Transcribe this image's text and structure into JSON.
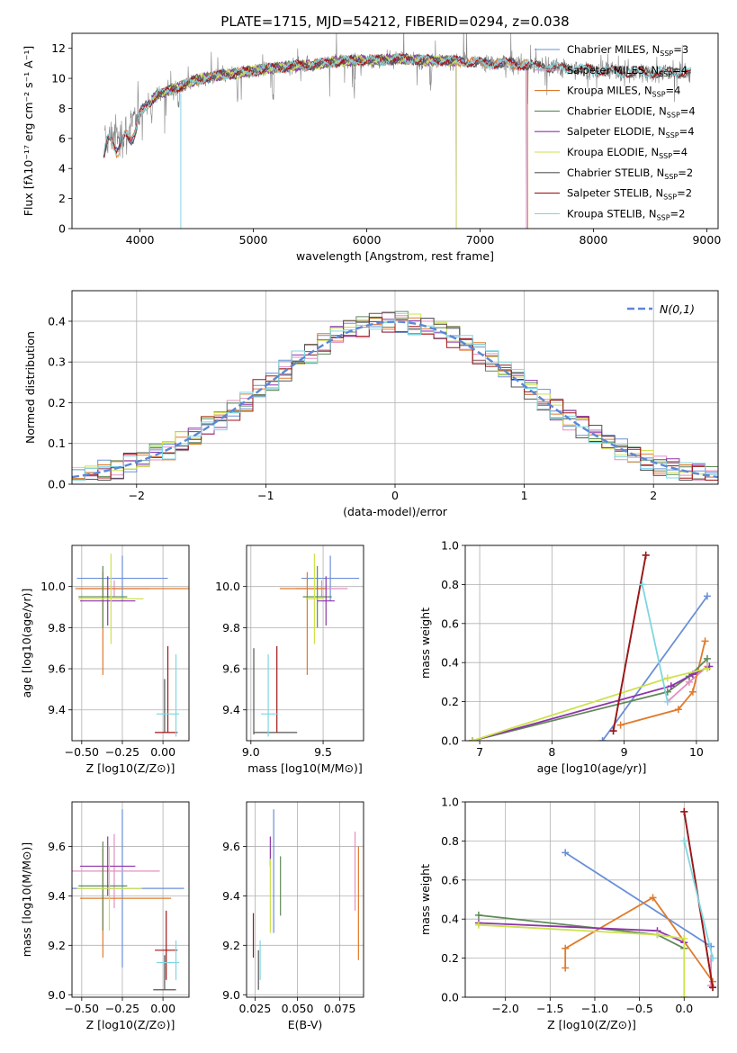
{
  "figure": {
    "title": "PLATE=1715, MJD=54212, FIBERID=0294, z=0.038"
  },
  "colors": {
    "Chabrier MILES": "#6a8fd8",
    "Salpeter MILES": "#e48fbf",
    "Kroupa MILES": "#e07a2a",
    "Chabrier ELODIE": "#5f8a58",
    "Salpeter ELODIE": "#8e35a8",
    "Kroupa ELODIE": "#cde24d",
    "Chabrier STELIB": "#555555",
    "Salpeter STELIB": "#a01616",
    "Kroupa STELIB": "#7fd6e0"
  },
  "chart_data": [
    {
      "id": "spectrum",
      "type": "line",
      "xlabel": "wavelength [Angstrom, rest frame]",
      "ylabel": "Flux [fλ10⁻¹⁷ erg cm⁻² s⁻¹ A⁻¹]",
      "xlim": [
        3400,
        9100
      ],
      "ylim": [
        0,
        13
      ],
      "xticks": [
        4000,
        5000,
        6000,
        7000,
        8000,
        9000
      ],
      "yticks": [
        0,
        2,
        4,
        6,
        8,
        10,
        12
      ],
      "legend": [
        {
          "label": "Chabrier MILES, N",
          "sub": "SSP",
          "suffix": "=3",
          "key": "Chabrier MILES"
        },
        {
          "label": "Salpeter MILES, N",
          "sub": "SSP",
          "suffix": "=4",
          "key": "Salpeter MILES"
        },
        {
          "label": "Kroupa MILES, N",
          "sub": "SSP",
          "suffix": "=4",
          "key": "Kroupa MILES"
        },
        {
          "label": "Chabrier ELODIE, N",
          "sub": "SSP",
          "suffix": "=4",
          "key": "Chabrier ELODIE"
        },
        {
          "label": "Salpeter ELODIE, N",
          "sub": "SSP",
          "suffix": "=4",
          "key": "Salpeter ELODIE"
        },
        {
          "label": "Kroupa ELODIE, N",
          "sub": "SSP",
          "suffix": "=4",
          "key": "Kroupa ELODIE"
        },
        {
          "label": "Chabrier STELIB, N",
          "sub": "SSP",
          "suffix": "=2",
          "key": "Chabrier STELIB"
        },
        {
          "label": "Salpeter STELIB, N",
          "sub": "SSP",
          "suffix": "=2",
          "key": "Salpeter STELIB"
        },
        {
          "label": "Kroupa STELIB, N",
          "sub": "SSP",
          "suffix": "=2",
          "key": "Kroupa STELIB"
        }
      ],
      "continuum": {
        "x": [
          3680,
          3750,
          3850,
          3950,
          4050,
          4150,
          4300,
          4500,
          4700,
          4900,
          5100,
          5300,
          5500,
          5700,
          5900,
          6100,
          6300,
          6500,
          6700,
          6900,
          7100,
          7300,
          7500,
          7700,
          7900,
          8100,
          8300,
          8500,
          8700,
          8850
        ],
        "y": [
          5.6,
          6.2,
          6.3,
          7.2,
          8.2,
          8.9,
          9.3,
          9.9,
          10.2,
          10.4,
          10.6,
          10.8,
          10.9,
          11.1,
          11.2,
          11.2,
          11.3,
          11.2,
          11.2,
          11.1,
          11.0,
          11.0,
          10.8,
          10.7,
          10.6,
          10.5,
          10.4,
          10.4,
          10.4,
          10.4
        ]
      },
      "data_range": [
        3690,
        8860
      ],
      "model_ranges": {
        "Chabrier MILES": [
          3680,
          7410
        ],
        "Salpeter MILES": [
          3680,
          7410
        ],
        "Kroupa MILES": [
          3680,
          7420
        ],
        "Chabrier ELODIE": [
          4100,
          6790
        ],
        "Salpeter ELODIE": [
          4100,
          6790
        ],
        "Kroupa ELODIE": [
          4100,
          6790
        ],
        "Chabrier STELIB": [
          3680,
          8860
        ],
        "Salpeter STELIB": [
          3680,
          8860
        ],
        "Kroupa STELIB": [
          3680,
          8860
        ]
      }
    },
    {
      "id": "residuals",
      "type": "histogram",
      "xlabel": "(data-model)/error",
      "ylabel": "Normed distribution",
      "xlim": [
        -2.5,
        2.5
      ],
      "ylim": [
        0,
        0.475
      ],
      "xticks": [
        -2,
        -1,
        0,
        1,
        2
      ],
      "yticks": [
        0.0,
        0.1,
        0.2,
        0.3,
        0.4
      ],
      "grid": true,
      "legend_label": "N(0,1)",
      "reference": {
        "mean": 0,
        "sigma": 1
      },
      "bin_width": 0.1
    },
    {
      "id": "age-vs-Z",
      "type": "errorbar",
      "xlabel": "Z [log10(Z/Z⊙)]",
      "ylabel": "age  [log10(age/yr)]",
      "xlim": [
        -0.56,
        0.16
      ],
      "ylim": [
        9.25,
        10.2
      ],
      "xticks": [
        -0.5,
        -0.25,
        0.0
      ],
      "yticks": [
        9.4,
        9.6,
        9.8,
        10.0
      ],
      "grid": true,
      "points": [
        {
          "key": "Chabrier MILES",
          "x": -0.25,
          "xerr": 0.28,
          "y": 10.04,
          "yerr": 0.11
        },
        {
          "key": "Salpeter MILES",
          "x": -0.3,
          "xerr": 0.22,
          "y": 9.99,
          "yerr": 0.04
        },
        {
          "key": "Kroupa MILES",
          "x": -0.18,
          "xerr": 0.36,
          "y": 9.99,
          "yerr": 0.0
        },
        {
          "key": "Kroupa MILES",
          "x": -0.37,
          "xerr": 0.0,
          "y": 9.82,
          "yerr": 0.25
        },
        {
          "key": "Chabrier ELODIE",
          "x": -0.37,
          "xerr": 0.15,
          "y": 9.95,
          "yerr": 0.15
        },
        {
          "key": "Salpeter ELODIE",
          "x": -0.34,
          "xerr": 0.17,
          "y": 9.93,
          "yerr": 0.12
        },
        {
          "key": "Kroupa ELODIE",
          "x": -0.32,
          "xerr": 0.2,
          "y": 9.94,
          "yerr": 0.22
        },
        {
          "key": "Chabrier STELIB",
          "x": 0.01,
          "xerr": 0.0,
          "y": 9.42,
          "yerr": 0.13
        },
        {
          "key": "Salpeter STELIB",
          "x": 0.02,
          "xerr": 0.07,
          "y": 9.29,
          "yerr": 0.0
        },
        {
          "key": "Salpeter STELIB",
          "x": 0.03,
          "xerr": 0.0,
          "y": 9.5,
          "yerr": 0.21
        },
        {
          "key": "Kroupa STELIB",
          "x": 0.03,
          "xerr": 0.07,
          "y": 9.38,
          "yerr": 0.0
        },
        {
          "key": "Kroupa STELIB",
          "x": 0.08,
          "xerr": 0.0,
          "y": 9.47,
          "yerr": 0.2
        }
      ]
    },
    {
      "id": "age-vs-mass",
      "type": "errorbar",
      "xlabel": "mass [log10(M/M⊙)]",
      "ylabel": "",
      "xlim": [
        8.97,
        9.78
      ],
      "ylim": [
        9.25,
        10.2
      ],
      "xticks": [
        9.0,
        9.5
      ],
      "yticks": [
        9.4,
        9.6,
        9.8,
        10.0
      ],
      "grid": true,
      "points": [
        {
          "key": "Chabrier MILES",
          "x": 9.55,
          "xerr": 0.2,
          "y": 10.04,
          "yerr": 0.11
        },
        {
          "key": "Salpeter MILES",
          "x": 9.49,
          "xerr": 0.18,
          "y": 9.99,
          "yerr": 0.04
        },
        {
          "key": "Kroupa MILES",
          "x": 9.36,
          "xerr": 0.16,
          "y": 9.99,
          "yerr": 0.0
        },
        {
          "key": "Kroupa MILES",
          "x": 9.39,
          "xerr": 0.0,
          "y": 9.82,
          "yerr": 0.25
        },
        {
          "key": "Chabrier ELODIE",
          "x": 9.46,
          "xerr": 0.1,
          "y": 9.95,
          "yerr": 0.15
        },
        {
          "key": "Salpeter ELODIE",
          "x": 9.52,
          "xerr": 0.06,
          "y": 9.93,
          "yerr": 0.12
        },
        {
          "key": "Kroupa ELODIE",
          "x": 9.44,
          "xerr": 0.06,
          "y": 9.94,
          "yerr": 0.22
        },
        {
          "key": "Chabrier STELIB",
          "x": 9.17,
          "xerr": 0.15,
          "y": 9.29,
          "yerr": 0.0
        },
        {
          "key": "Chabrier STELIB",
          "x": 9.02,
          "xerr": 0.0,
          "y": 9.49,
          "yerr": 0.21
        },
        {
          "key": "Salpeter STELIB",
          "x": 9.18,
          "xerr": 0.0,
          "y": 9.5,
          "yerr": 0.21
        },
        {
          "key": "Kroupa STELIB",
          "x": 9.13,
          "xerr": 0.06,
          "y": 9.38,
          "yerr": 0.0
        },
        {
          "key": "Kroupa STELIB",
          "x": 9.12,
          "xerr": 0.0,
          "y": 9.47,
          "yerr": 0.2
        }
      ]
    },
    {
      "id": "massweight-vs-age",
      "type": "line",
      "xlabel": "age  [log10(age/yr)]",
      "ylabel": "mass weight",
      "xlim": [
        6.8,
        10.3
      ],
      "ylim": [
        0,
        1.0
      ],
      "xticks": [
        7,
        8,
        9,
        10
      ],
      "yticks": [
        0.0,
        0.2,
        0.4,
        0.6,
        0.8,
        1.0
      ],
      "grid": true,
      "series": [
        {
          "key": "Chabrier MILES",
          "x": [
            8.7,
            10.15
          ],
          "y": [
            0.0,
            0.74
          ]
        },
        {
          "key": "Salpeter MILES",
          "x": [
            9.6,
            9.9,
            10.15
          ],
          "y": [
            0.2,
            0.3,
            0.38
          ]
        },
        {
          "key": "Kroupa MILES",
          "x": [
            8.95,
            9.75,
            9.95,
            10.12
          ],
          "y": [
            0.08,
            0.16,
            0.25,
            0.51
          ]
        },
        {
          "key": "Chabrier ELODIE",
          "x": [
            6.9,
            9.6,
            9.9,
            10.15
          ],
          "y": [
            0.0,
            0.25,
            0.33,
            0.42
          ]
        },
        {
          "key": "Salpeter ELODIE",
          "x": [
            6.9,
            9.65,
            9.95,
            10.18
          ],
          "y": [
            0.0,
            0.28,
            0.34,
            0.38
          ]
        },
        {
          "key": "Kroupa ELODIE",
          "x": [
            6.9,
            9.6,
            10.15
          ],
          "y": [
            0.0,
            0.32,
            0.37
          ]
        },
        {
          "key": "Chabrier STELIB",
          "x": [
            8.85,
            9.3
          ],
          "y": [
            0.05,
            0.95
          ]
        },
        {
          "key": "Salpeter STELIB",
          "x": [
            8.85,
            9.3
          ],
          "y": [
            0.05,
            0.95
          ]
        },
        {
          "key": "Kroupa STELIB",
          "x": [
            9.25,
            9.6
          ],
          "y": [
            0.8,
            0.2
          ]
        }
      ]
    },
    {
      "id": "mass-vs-Z",
      "type": "errorbar",
      "xlabel": "Z [log10(Z/Z⊙)]",
      "ylabel": "mass [log10(M/M⊙)]",
      "xlim": [
        -0.56,
        0.16
      ],
      "ylim": [
        8.99,
        9.78
      ],
      "xticks": [
        -0.5,
        -0.25,
        0.0
      ],
      "yticks": [
        9.0,
        9.2,
        9.4,
        9.6
      ],
      "grid": true,
      "points": [
        {
          "key": "Chabrier MILES",
          "x": -0.25,
          "xerr": 0.38,
          "y": 9.43,
          "yerr": 0.32
        },
        {
          "key": "Salpeter MILES",
          "x": -0.3,
          "xerr": 0.28,
          "y": 9.5,
          "yerr": 0.15
        },
        {
          "key": "Kroupa MILES",
          "x": -0.23,
          "xerr": 0.28,
          "y": 9.39,
          "yerr": 0.0
        },
        {
          "key": "Kroupa MILES",
          "x": -0.37,
          "xerr": 0.0,
          "y": 9.37,
          "yerr": 0.22
        },
        {
          "key": "Chabrier ELODIE",
          "x": -0.37,
          "xerr": 0.15,
          "y": 9.44,
          "yerr": 0.18
        },
        {
          "key": "Salpeter ELODIE",
          "x": -0.34,
          "xerr": 0.17,
          "y": 9.52,
          "yerr": 0.12
        },
        {
          "key": "Kroupa ELODIE",
          "x": -0.33,
          "xerr": 0.2,
          "y": 9.43,
          "yerr": 0.17
        },
        {
          "key": "Chabrier STELIB",
          "x": 0.01,
          "xerr": 0.07,
          "y": 9.02,
          "yerr": 0.0
        },
        {
          "key": "Chabrier STELIB",
          "x": 0.01,
          "xerr": 0.0,
          "y": 9.09,
          "yerr": 0.07
        },
        {
          "key": "Salpeter STELIB",
          "x": 0.02,
          "xerr": 0.07,
          "y": 9.18,
          "yerr": 0.0
        },
        {
          "key": "Salpeter STELIB",
          "x": 0.02,
          "xerr": 0.0,
          "y": 9.2,
          "yerr": 0.14
        },
        {
          "key": "Kroupa STELIB",
          "x": 0.03,
          "xerr": 0.07,
          "y": 9.13,
          "yerr": 0.0
        },
        {
          "key": "Kroupa STELIB",
          "x": 0.08,
          "xerr": 0.0,
          "y": 9.14,
          "yerr": 0.08
        }
      ]
    },
    {
      "id": "mass-vs-EBV",
      "type": "errorbar",
      "xlabel": "E(B-V)",
      "ylabel": "",
      "xlim": [
        0.02,
        0.089
      ],
      "ylim": [
        8.99,
        9.78
      ],
      "xticks": [
        0.025,
        0.05,
        0.075
      ],
      "yticks": [
        9.0,
        9.2,
        9.4,
        9.6
      ],
      "grid": true,
      "points": [
        {
          "key": "Chabrier MILES",
          "x": 0.036,
          "xerr": 0.0,
          "y": 9.5,
          "yerr": 0.25
        },
        {
          "key": "Salpeter MILES",
          "x": 0.084,
          "xerr": 0.0,
          "y": 9.5,
          "yerr": 0.16
        },
        {
          "key": "Kroupa MILES",
          "x": 0.086,
          "xerr": 0.0,
          "y": 9.37,
          "yerr": 0.23
        },
        {
          "key": "Chabrier ELODIE",
          "x": 0.04,
          "xerr": 0.0,
          "y": 9.44,
          "yerr": 0.12
        },
        {
          "key": "Salpeter ELODIE",
          "x": 0.034,
          "xerr": 0.0,
          "y": 9.58,
          "yerr": 0.06
        },
        {
          "key": "Kroupa ELODIE",
          "x": 0.034,
          "xerr": 0.0,
          "y": 9.4,
          "yerr": 0.15
        },
        {
          "key": "Chabrier STELIB",
          "x": 0.027,
          "xerr": 0.0,
          "y": 9.1,
          "yerr": 0.08
        },
        {
          "key": "Salpeter STELIB",
          "x": 0.024,
          "xerr": 0.0,
          "y": 9.24,
          "yerr": 0.09
        },
        {
          "key": "Kroupa STELIB",
          "x": 0.028,
          "xerr": 0.0,
          "y": 9.14,
          "yerr": 0.08
        }
      ]
    },
    {
      "id": "massweight-vs-Z",
      "type": "line",
      "xlabel": "Z [log10(Z/Z⊙)]",
      "ylabel": "mass weight",
      "xlim": [
        -2.45,
        0.38
      ],
      "ylim": [
        0,
        1.0
      ],
      "xticks": [
        -2.0,
        -1.5,
        -1.0,
        -0.5,
        0.0
      ],
      "yticks": [
        0.0,
        0.2,
        0.4,
        0.6,
        0.8,
        1.0
      ],
      "grid": true,
      "series": [
        {
          "key": "Chabrier MILES",
          "x": [
            -1.33,
            0.3
          ],
          "y": [
            0.74,
            0.26
          ]
        },
        {
          "key": "Salpeter MILES",
          "x": [
            0.3,
            0.3
          ],
          "y": [
            0.2,
            0.06
          ]
        },
        {
          "key": "Kroupa MILES",
          "x": [
            -1.33,
            -1.33,
            -0.35,
            0.32
          ],
          "y": [
            0.15,
            0.25,
            0.51,
            0.08
          ]
        },
        {
          "key": "Chabrier ELODIE",
          "x": [
            -2.3,
            -0.3,
            0.0
          ],
          "y": [
            0.42,
            0.32,
            0.25
          ]
        },
        {
          "key": "Salpeter ELODIE",
          "x": [
            -2.3,
            -0.3,
            0.0
          ],
          "y": [
            0.38,
            0.34,
            0.28
          ]
        },
        {
          "key": "Kroupa ELODIE",
          "x": [
            -2.3,
            -0.3,
            0.0,
            0.0
          ],
          "y": [
            0.37,
            0.32,
            0.3,
            0.0
          ]
        },
        {
          "key": "Chabrier STELIB",
          "x": [
            0.0,
            0.32
          ],
          "y": [
            0.95,
            0.05
          ]
        },
        {
          "key": "Salpeter STELIB",
          "x": [
            0.0,
            0.32
          ],
          "y": [
            0.95,
            0.05
          ]
        },
        {
          "key": "Kroupa STELIB",
          "x": [
            0.0,
            0.32
          ],
          "y": [
            0.8,
            0.2
          ]
        }
      ]
    }
  ]
}
